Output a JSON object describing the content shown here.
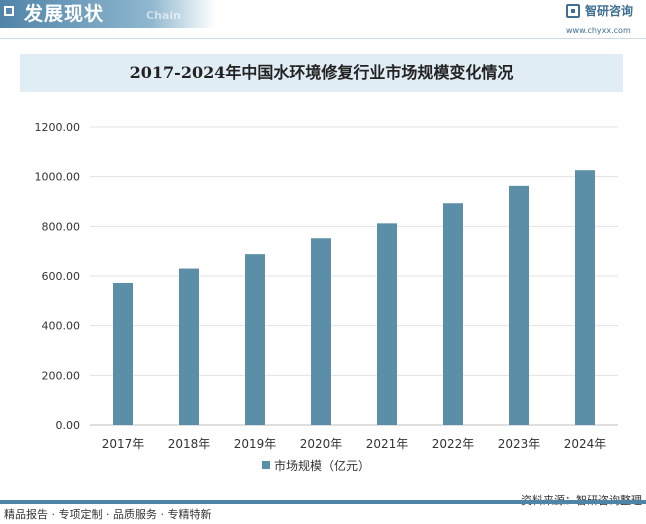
{
  "header": {
    "title": "发展现状",
    "subtitle": "Chain"
  },
  "logo": {
    "name": "智研咨询",
    "url": "www.chyxx.com"
  },
  "footer": {
    "left": "精品报告 · 专项定制 · 品质服务 · 专精特新",
    "source": "资料来源：智研咨询整理"
  },
  "colors": {
    "bar": "#5b8fa8",
    "accent": "#4f84a8",
    "title_bg": "#e1edf5"
  },
  "chart_data": {
    "type": "bar",
    "title": "2017-2024年中国水环境修复行业市场规模变化情况",
    "categories": [
      "2017年",
      "2018年",
      "2019年",
      "2020年",
      "2021年",
      "2022年",
      "2023年",
      "2024年"
    ],
    "series": [
      {
        "name": "市场规模（亿元）",
        "values": [
          572,
          630,
          688,
          752,
          812,
          893,
          963,
          1026
        ]
      }
    ],
    "yticks": [
      "0.00",
      "200.00",
      "400.00",
      "600.00",
      "800.00",
      "1000.00",
      "1200.00"
    ],
    "ylim": [
      0,
      1200
    ],
    "grid": true,
    "legend": "bottom"
  }
}
